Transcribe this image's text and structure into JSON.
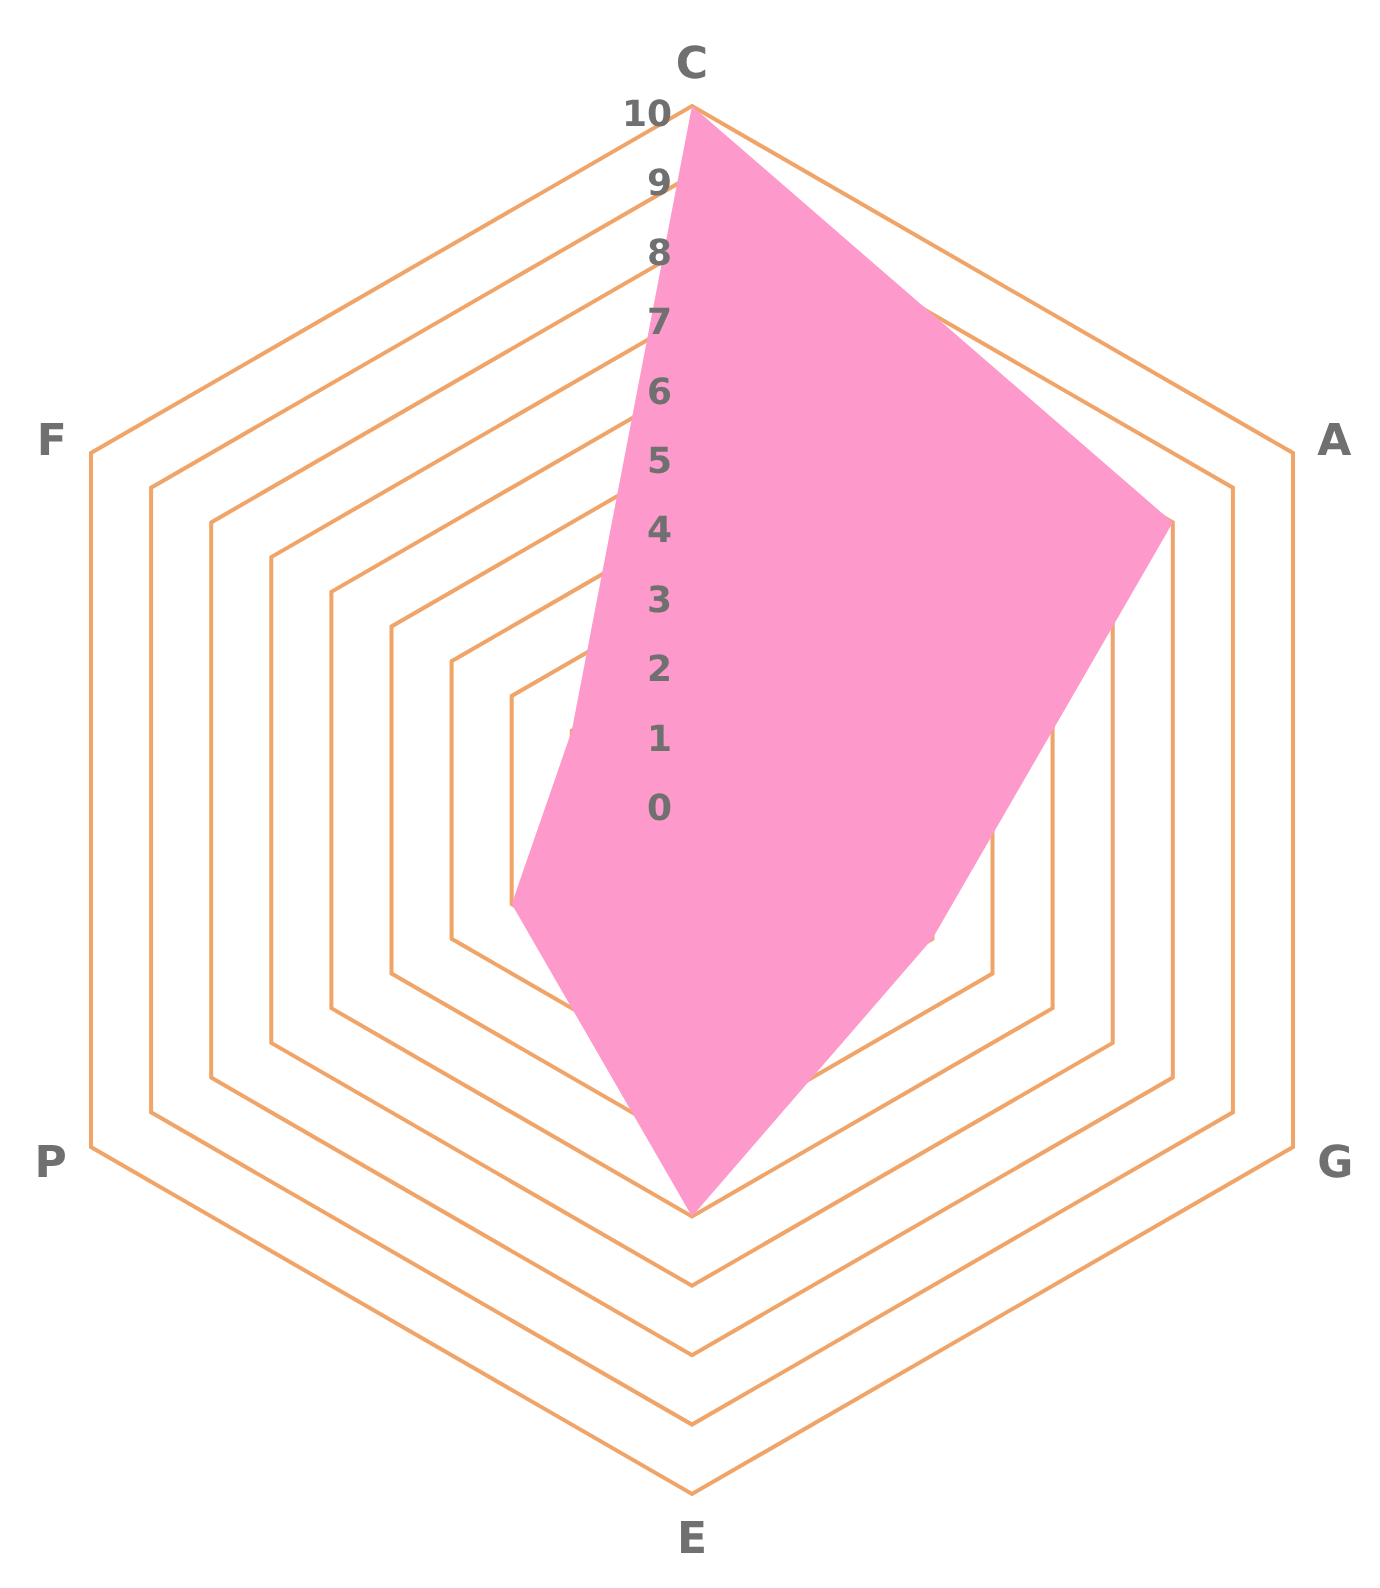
{
  "chart_data": {
    "type": "radar",
    "categories": [
      "C",
      "A",
      "G",
      "E",
      "P",
      "F"
    ],
    "series": [
      {
        "color": "#fe99cb",
        "values": [
          10,
          8,
          4,
          6,
          3,
          2
        ]
      }
    ],
    "ylim": [
      0,
      10
    ],
    "yticks": [
      0,
      1,
      2,
      3,
      4,
      5,
      6,
      7,
      8,
      9,
      10
    ],
    "grid": true
  }
}
